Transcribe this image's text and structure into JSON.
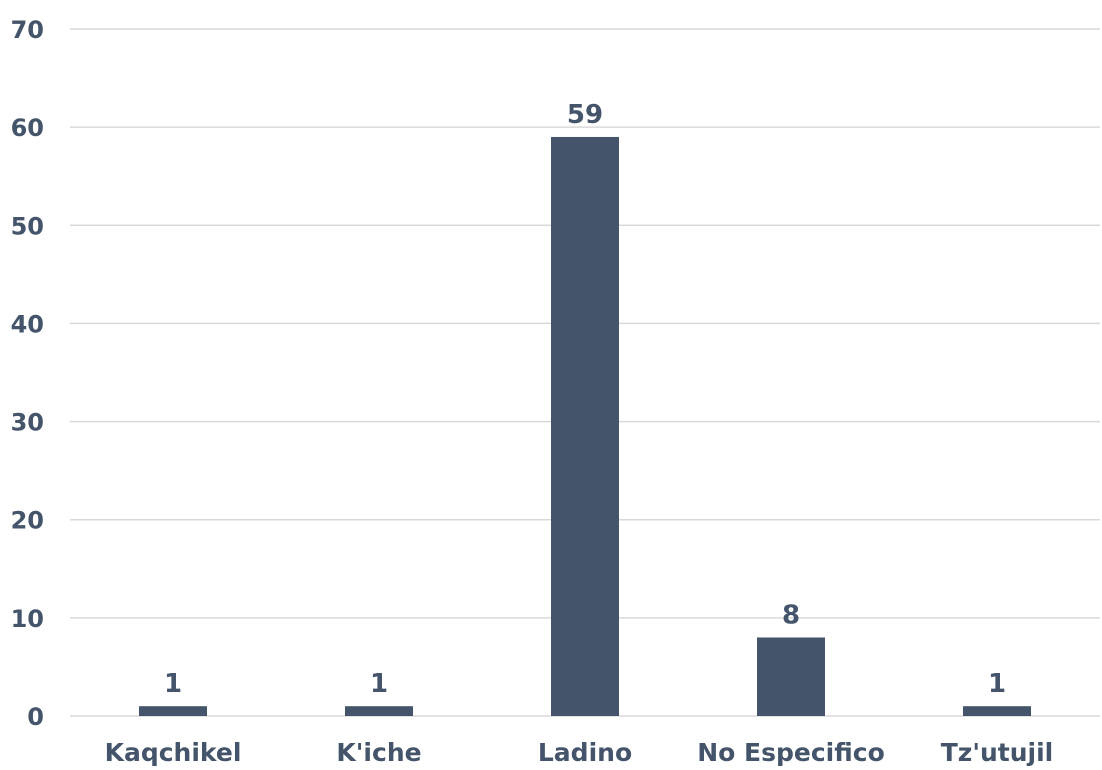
{
  "chart_data": {
    "type": "bar",
    "title": "",
    "xlabel": "",
    "ylabel": "",
    "categories": [
      "Kaqchikel",
      "K'iche",
      "Ladino",
      "No Especifico",
      "Tz'utujil"
    ],
    "values": [
      1,
      1,
      59,
      8,
      1
    ],
    "ylim": [
      0,
      70
    ],
    "yticks": [
      0,
      10,
      20,
      30,
      40,
      50,
      60,
      70
    ],
    "grid": true,
    "legend": "none",
    "data_labels": true,
    "colors": {
      "bar": "#44546A",
      "text": "#44546A",
      "grid": "#d9d9d9",
      "background": "#ffffff"
    }
  }
}
